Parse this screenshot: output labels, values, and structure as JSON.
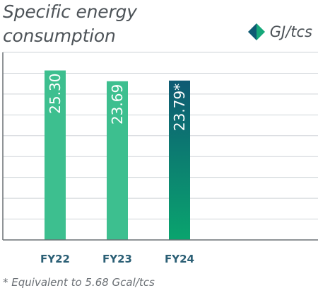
{
  "chart_data": {
    "type": "bar",
    "title": "Specific energy consumption",
    "unit": "GJ/tcs",
    "categories": [
      "FY22",
      "FY23",
      "FY24"
    ],
    "values": [
      25.3,
      23.69,
      23.79
    ],
    "value_labels": [
      "25.30",
      "23.69",
      "23.79*"
    ],
    "ylim": [
      0,
      28
    ],
    "grid": true,
    "legend": "top-right",
    "footnote": "* Equivalent to 5.68 Gcal/tcs",
    "colors": {
      "bar": "#3dbf8f",
      "highlight_top": "#0e5a73",
      "highlight_bottom": "#0aa46e",
      "grid": "#cfd4d8",
      "axis": "#6b7075",
      "legend_dark": "#0e5a73",
      "legend_light": "#16a87a"
    }
  }
}
